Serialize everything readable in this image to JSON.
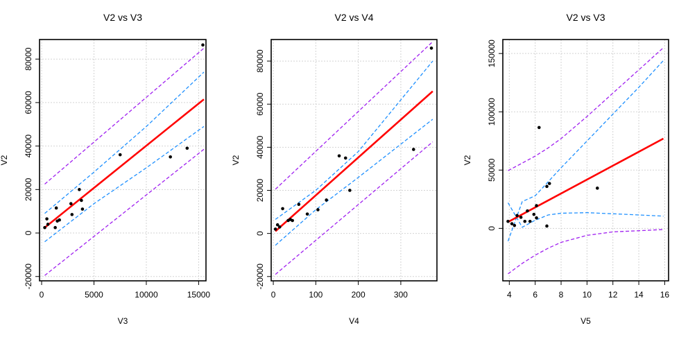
{
  "colors": {
    "fit": "#ff0000",
    "confidence": "#1e90ff",
    "prediction": "#a020f0",
    "points": "#000000",
    "grid": "#d3d3d3"
  },
  "chart_data": [
    {
      "type": "scatter",
      "title": "V2 vs V3",
      "xlabel": "V3",
      "ylabel": "V2",
      "xlim": [
        -200,
        15700
      ],
      "ylim": [
        -22000,
        89000
      ],
      "xticks": [
        0,
        5000,
        10000,
        15000
      ],
      "xtick_labels": [
        "0",
        "5000",
        "10000",
        "15000"
      ],
      "yticks": [
        -20000,
        0,
        20000,
        40000,
        60000,
        80000
      ],
      "ytick_labels": [
        "-20000",
        "0",
        "20000",
        "40000",
        "60000",
        "80000"
      ],
      "grid": true,
      "points": [
        {
          "x": 300,
          "y": 2500
        },
        {
          "x": 500,
          "y": 6500
        },
        {
          "x": 600,
          "y": 4000
        },
        {
          "x": 1300,
          "y": 2500
        },
        {
          "x": 1400,
          "y": 11500
        },
        {
          "x": 1500,
          "y": 5500
        },
        {
          "x": 1700,
          "y": 6000
        },
        {
          "x": 2800,
          "y": 13500
        },
        {
          "x": 2900,
          "y": 8500
        },
        {
          "x": 3600,
          "y": 20000
        },
        {
          "x": 3800,
          "y": 15000
        },
        {
          "x": 3900,
          "y": 11000
        },
        {
          "x": 7500,
          "y": 36000
        },
        {
          "x": 12300,
          "y": 35000
        },
        {
          "x": 13900,
          "y": 39000
        },
        {
          "x": 15400,
          "y": 86500
        }
      ],
      "fit": {
        "x": [
          300,
          15500
        ],
        "y": [
          2500,
          61500
        ]
      },
      "confidence_upper": {
        "x": [
          300,
          5000,
          10000,
          15500
        ],
        "y": [
          9000,
          28000,
          49000,
          74000
        ]
      },
      "confidence_lower": {
        "x": [
          300,
          5000,
          10000,
          15500
        ],
        "y": [
          -4000,
          13500,
          30000,
          49000
        ]
      },
      "prediction_upper": {
        "x": [
          300,
          15500
        ],
        "y": [
          22500,
          85000
        ]
      },
      "prediction_lower": {
        "x": [
          300,
          15500
        ],
        "y": [
          -19500,
          38500
        ]
      }
    },
    {
      "type": "scatter",
      "title": "V2 vs V4",
      "xlabel": "V4",
      "ylabel": "V2",
      "xlim": [
        -5,
        385
      ],
      "ylim": [
        -22000,
        90000
      ],
      "xticks": [
        0,
        100,
        200,
        300
      ],
      "xtick_labels": [
        "0",
        "100",
        "200",
        "300"
      ],
      "yticks": [
        -20000,
        0,
        20000,
        40000,
        60000,
        80000
      ],
      "ytick_labels": [
        "-20000",
        "0",
        "20000",
        "40000",
        "60000",
        "80000"
      ],
      "grid": true,
      "points": [
        {
          "x": 5,
          "y": 2000
        },
        {
          "x": 10,
          "y": 4000
        },
        {
          "x": 15,
          "y": 3000
        },
        {
          "x": 22,
          "y": 11500
        },
        {
          "x": 35,
          "y": 6000
        },
        {
          "x": 40,
          "y": 6500
        },
        {
          "x": 45,
          "y": 6000
        },
        {
          "x": 60,
          "y": 13500
        },
        {
          "x": 80,
          "y": 9000
        },
        {
          "x": 105,
          "y": 11000
        },
        {
          "x": 125,
          "y": 15500
        },
        {
          "x": 155,
          "y": 36000
        },
        {
          "x": 170,
          "y": 35000
        },
        {
          "x": 180,
          "y": 20000
        },
        {
          "x": 330,
          "y": 39000
        },
        {
          "x": 372,
          "y": 86000
        }
      ],
      "fit": {
        "x": [
          5,
          375
        ],
        "y": [
          1000,
          66000
        ]
      },
      "confidence_upper": {
        "x": [
          5,
          100,
          200,
          375
        ],
        "y": [
          6500,
          20000,
          38000,
          80000
        ]
      },
      "confidence_lower": {
        "x": [
          5,
          100,
          200,
          375
        ],
        "y": [
          -5500,
          11000,
          26000,
          53000
        ]
      },
      "prediction_upper": {
        "x": [
          5,
          375
        ],
        "y": [
          20500,
          89000
        ]
      },
      "prediction_lower": {
        "x": [
          5,
          375
        ],
        "y": [
          -19000,
          42500
        ]
      }
    },
    {
      "type": "scatter",
      "title": "V2 vs V3",
      "xlabel": "V5",
      "ylabel": "V2",
      "xlim": [
        3.5,
        16.3
      ],
      "ylim": [
        -45000,
        162000
      ],
      "xticks": [
        4,
        6,
        8,
        10,
        12,
        14,
        16
      ],
      "xtick_labels": [
        "4",
        "6",
        "8",
        "10",
        "12",
        "14",
        "16"
      ],
      "yticks": [
        0,
        50000,
        100000,
        150000
      ],
      "ytick_labels": [
        "0",
        "50000",
        "100000",
        "150000"
      ],
      "grid": true,
      "points": [
        {
          "x": 3.9,
          "y": 6000
        },
        {
          "x": 4.2,
          "y": 4000
        },
        {
          "x": 4.4,
          "y": 2500
        },
        {
          "x": 4.6,
          "y": 11000
        },
        {
          "x": 4.9,
          "y": 9500
        },
        {
          "x": 5.2,
          "y": 6000
        },
        {
          "x": 5.4,
          "y": 15000
        },
        {
          "x": 5.6,
          "y": 6000
        },
        {
          "x": 5.9,
          "y": 12000
        },
        {
          "x": 6.1,
          "y": 9000
        },
        {
          "x": 6.1,
          "y": 19500
        },
        {
          "x": 6.3,
          "y": 86500
        },
        {
          "x": 6.9,
          "y": 2000
        },
        {
          "x": 6.9,
          "y": 36000
        },
        {
          "x": 7.1,
          "y": 38500
        },
        {
          "x": 10.8,
          "y": 34500
        }
      ],
      "fit": {
        "x": [
          3.9,
          15.9
        ],
        "y": [
          5500,
          77000
        ]
      },
      "confidence_upper": {
        "x": [
          3.9,
          5,
          6,
          7,
          8,
          10,
          12,
          14,
          15.9
        ],
        "y": [
          -11000,
          23000,
          28000,
          40000,
          52000,
          75000,
          98000,
          121000,
          144000
        ]
      },
      "confidence_lower": {
        "x": [
          3.9,
          5,
          6,
          7,
          8,
          10,
          12,
          14,
          15.9
        ],
        "y": [
          22000,
          1000,
          7000,
          11500,
          13000,
          13500,
          12500,
          11500,
          10500
        ]
      },
      "prediction_upper": {
        "x": [
          3.9,
          5,
          6,
          7,
          8,
          10,
          12,
          14,
          15.9
        ],
        "y": [
          49500,
          56000,
          62000,
          69000,
          77000,
          96000,
          116000,
          136000,
          155000
        ]
      },
      "prediction_lower": {
        "x": [
          3.9,
          5,
          6,
          7,
          8,
          10,
          12,
          14,
          15.9
        ],
        "y": [
          -39000,
          -30000,
          -23000,
          -17000,
          -12000,
          -6000,
          -3000,
          -2000,
          -1000
        ]
      }
    }
  ]
}
